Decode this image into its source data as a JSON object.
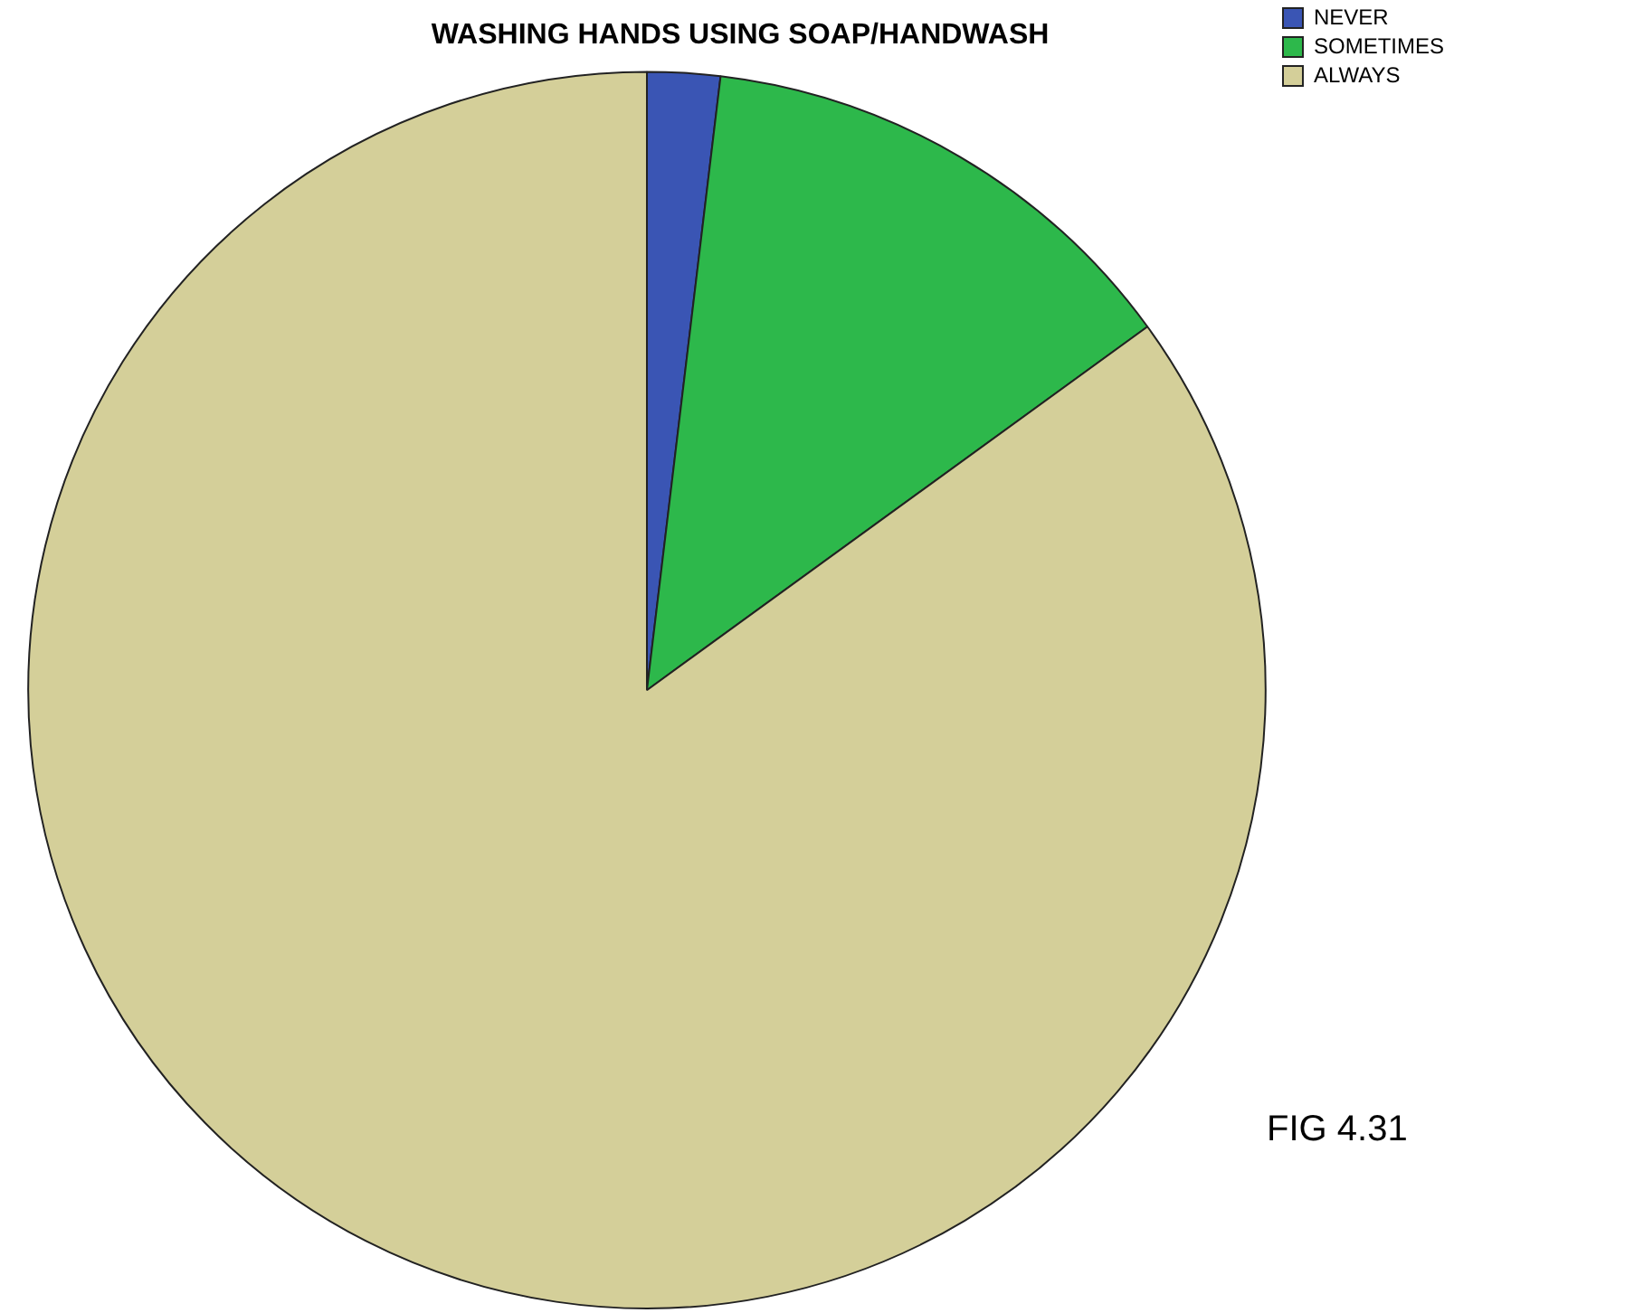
{
  "chart_data": {
    "type": "pie",
    "title": "WASHING HANDS USING SOAP/HANDWASH",
    "categories": [
      "NEVER",
      "SOMETIMES",
      "ALWAYS"
    ],
    "values": [
      1.9,
      13.1,
      85.0
    ],
    "colors": [
      "#3a55b4",
      "#2db84b",
      "#d4cf99"
    ],
    "legend": "top right",
    "annotations": [
      "FIG 4.31"
    ]
  }
}
